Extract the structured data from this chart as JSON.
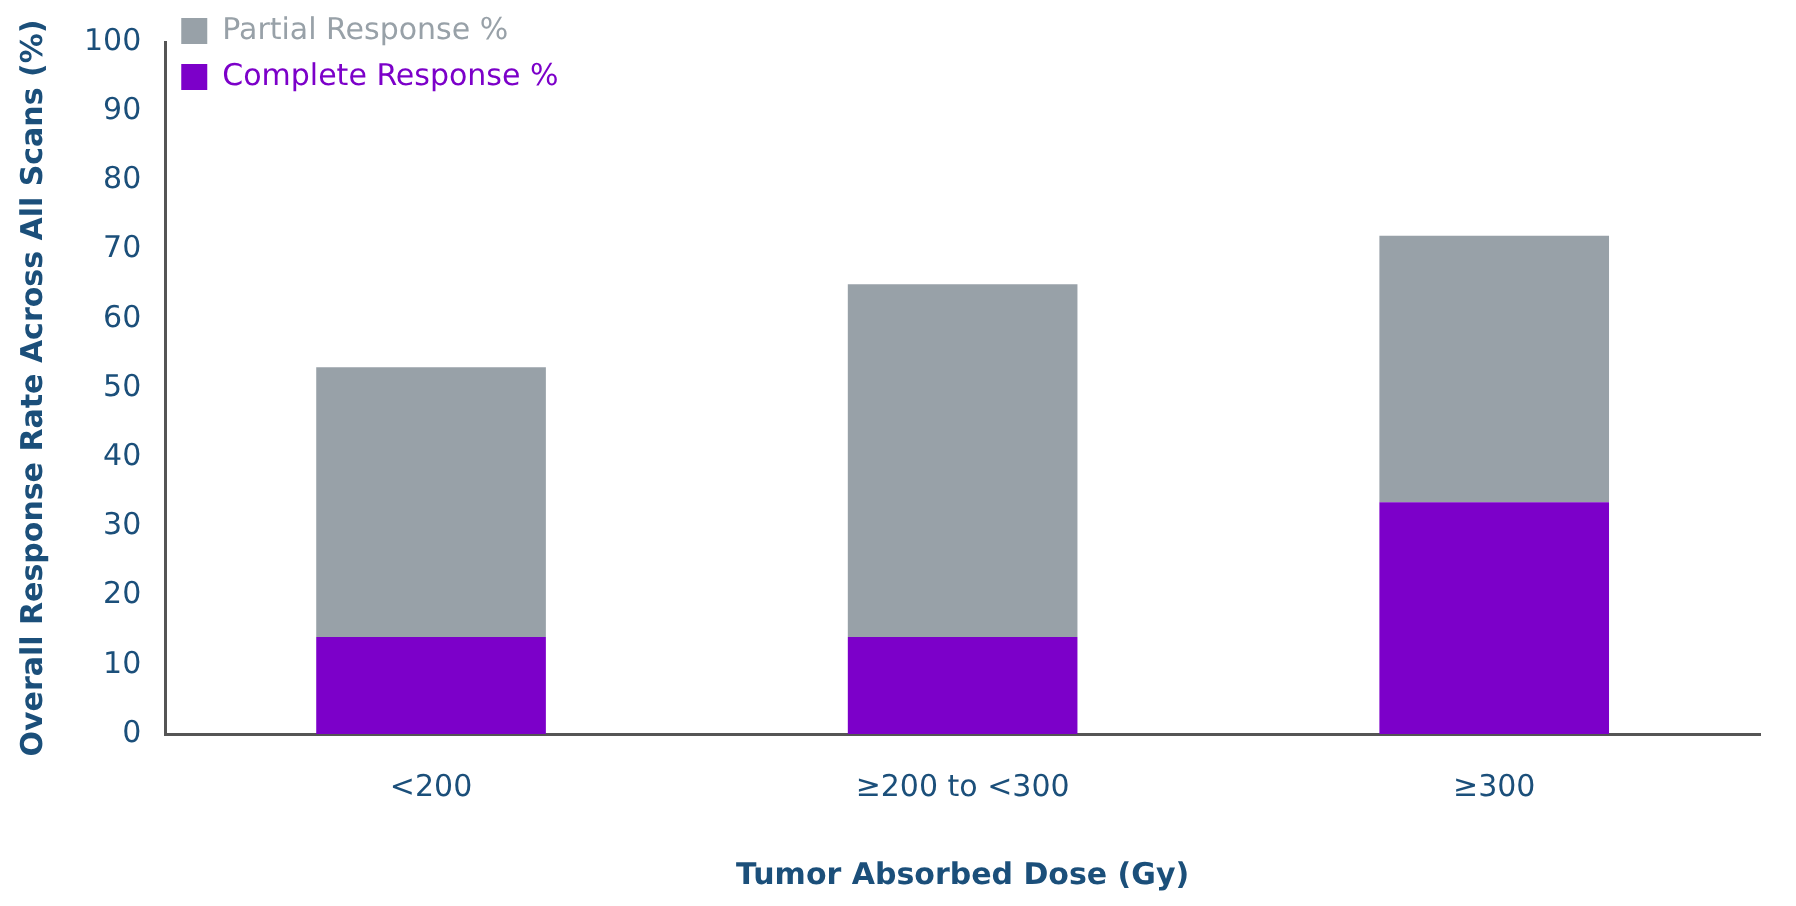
{
  "chart_data": {
    "type": "bar",
    "stacked": true,
    "xlabel": "Tumor Absorbed Dose (Gy)",
    "ylabel": "Overall Response Rate Across All Scans (%)",
    "categories": [
      "<200",
      "≥200 to <300",
      "≥300"
    ],
    "series": [
      {
        "name": "Complete Response %",
        "color": "#7c00c9",
        "values": [
          14,
          14,
          33.5
        ]
      },
      {
        "name": "Partial Response %",
        "color": "#98a1a8",
        "values": [
          39,
          51,
          38.5
        ]
      }
    ],
    "ylim": [
      0,
      100
    ],
    "yticks": [
      0,
      10,
      20,
      30,
      40,
      50,
      60,
      70,
      80,
      90,
      100
    ],
    "grid": false,
    "legend": "top left"
  }
}
